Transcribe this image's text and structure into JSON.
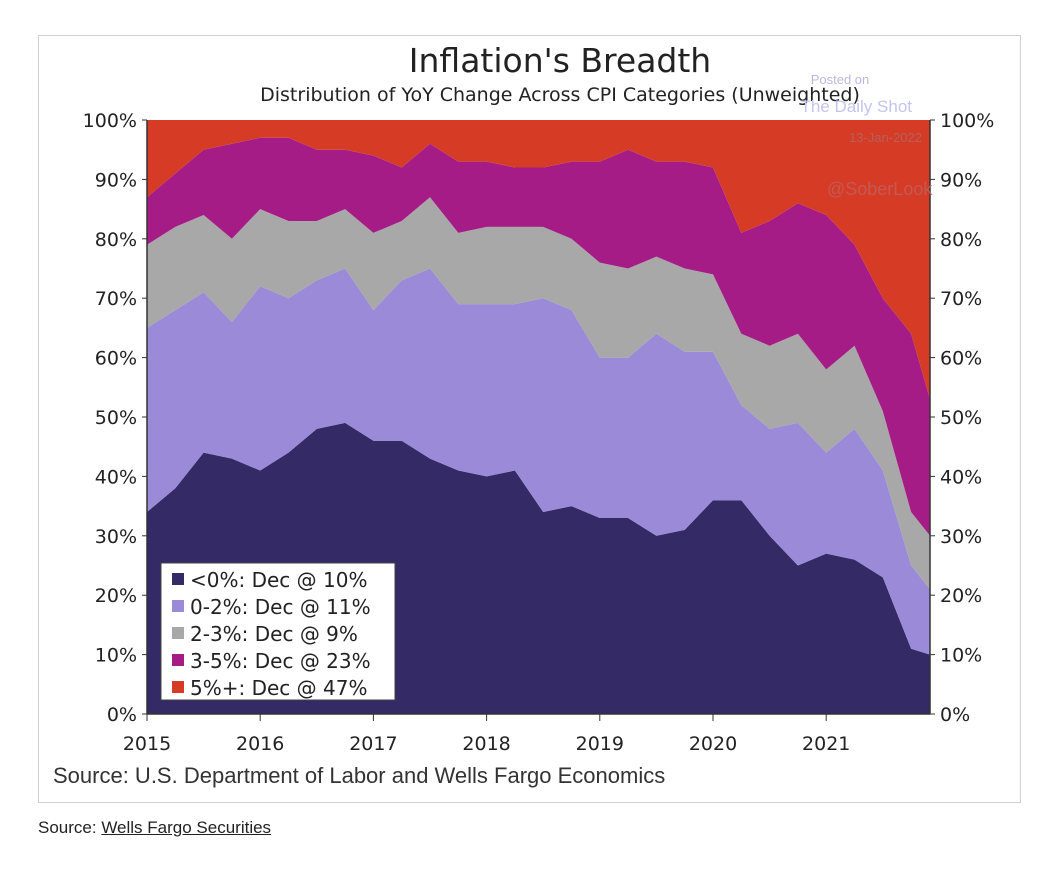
{
  "chart_data": {
    "type": "area",
    "stacked": true,
    "title": "Inflation's Breadth",
    "subtitle": "Distribution of YoY Change Across CPI Categories (Unweighted)",
    "xlabel": "",
    "ylabel": "",
    "ylim": [
      0,
      100
    ],
    "xlim": [
      2015,
      2021.917
    ],
    "y_ticks": [
      "0%",
      "10%",
      "20%",
      "30%",
      "40%",
      "50%",
      "60%",
      "70%",
      "80%",
      "90%",
      "100%"
    ],
    "x_ticks": [
      "2015",
      "2016",
      "2017",
      "2018",
      "2019",
      "2020",
      "2021"
    ],
    "x": [
      2015.0,
      2015.25,
      2015.5,
      2015.75,
      2016.0,
      2016.25,
      2016.5,
      2016.75,
      2017.0,
      2017.25,
      2017.5,
      2017.75,
      2018.0,
      2018.25,
      2018.5,
      2018.75,
      2019.0,
      2019.25,
      2019.5,
      2019.75,
      2020.0,
      2020.25,
      2020.5,
      2020.75,
      2021.0,
      2021.25,
      2021.5,
      2021.75,
      2021.917
    ],
    "series": [
      {
        "name": "<0%",
        "color": "#332a66",
        "values": [
          34,
          38,
          44,
          43,
          41,
          44,
          48,
          49,
          46,
          46,
          43,
          41,
          40,
          41,
          34,
          35,
          33,
          33,
          30,
          31,
          36,
          36,
          30,
          25,
          27,
          26,
          23,
          11,
          10
        ]
      },
      {
        "name": "0-2%",
        "color": "#9b8ad8",
        "values": [
          31,
          30,
          27,
          23,
          31,
          26,
          25,
          26,
          22,
          27,
          32,
          28,
          29,
          28,
          36,
          33,
          27,
          27,
          34,
          30,
          25,
          16,
          18,
          24,
          17,
          22,
          18,
          14,
          11
        ]
      },
      {
        "name": "2-3%",
        "color": "#a8a8a8",
        "values": [
          14,
          14,
          13,
          14,
          13,
          13,
          10,
          10,
          13,
          10,
          12,
          12,
          13,
          13,
          12,
          12,
          16,
          15,
          13,
          14,
          13,
          12,
          14,
          15,
          14,
          14,
          10,
          9,
          9
        ]
      },
      {
        "name": "3-5%",
        "color": "#a51c87",
        "values": [
          8,
          9,
          11,
          16,
          12,
          14,
          12,
          10,
          13,
          9,
          9,
          12,
          11,
          10,
          10,
          13,
          17,
          20,
          16,
          18,
          18,
          17,
          21,
          22,
          26,
          17,
          19,
          30,
          23
        ]
      },
      {
        "name": "5%+",
        "color": "#d63b25",
        "values": [
          13,
          9,
          5,
          4,
          3,
          3,
          5,
          5,
          6,
          8,
          4,
          7,
          7,
          8,
          8,
          7,
          7,
          5,
          7,
          7,
          8,
          19,
          17,
          14,
          16,
          21,
          30,
          36,
          47
        ]
      }
    ],
    "legend": {
      "placement": "bottom-left",
      "entries": [
        "<0%: Dec @ 10%",
        "0-2%: Dec @ 11%",
        "2-3%: Dec @ 9%",
        "3-5%: Dec @ 23%",
        "5%+: Dec @ 47%"
      ]
    },
    "source": "Source: U.S. Department of Labor and Wells Fargo Economics",
    "watermark": [
      "Posted on",
      "The Daily Shot",
      "13-Jan-2022",
      "@SoberLook"
    ]
  },
  "caption": {
    "prefix": "Source: ",
    "link": "Wells Fargo Securities"
  }
}
